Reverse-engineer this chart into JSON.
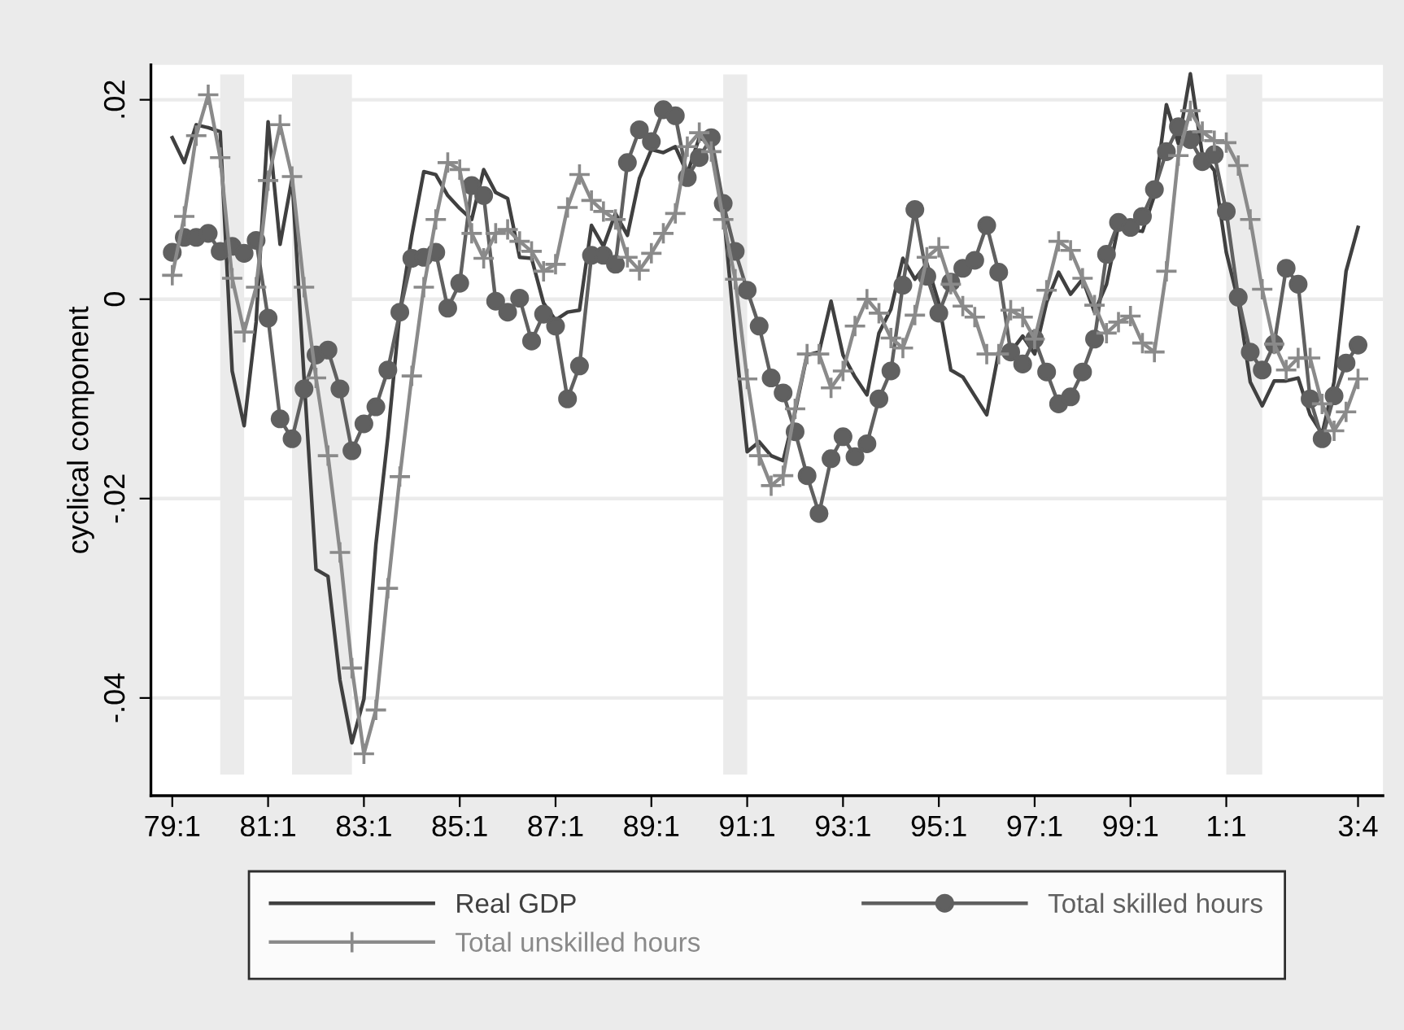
{
  "chart_data": {
    "type": "line",
    "ylabel": "cyclical component",
    "categories": [
      "79:1",
      null,
      null,
      null,
      null,
      null,
      null,
      null,
      "81:1",
      null,
      null,
      null,
      null,
      null,
      null,
      null,
      "83:1",
      null,
      null,
      null,
      null,
      null,
      null,
      null,
      "85:1",
      null,
      null,
      null,
      null,
      null,
      null,
      null,
      "87:1",
      null,
      null,
      null,
      null,
      null,
      null,
      null,
      "89:1",
      null,
      null,
      null,
      null,
      null,
      null,
      null,
      "91:1",
      null,
      null,
      null,
      null,
      null,
      null,
      null,
      "93:1",
      null,
      null,
      null,
      null,
      null,
      null,
      null,
      "95:1",
      null,
      null,
      null,
      null,
      null,
      null,
      null,
      "97:1",
      null,
      null,
      null,
      null,
      null,
      null,
      null,
      "99:1",
      null,
      null,
      null,
      null,
      null,
      null,
      null,
      "1:1",
      null,
      null,
      null,
      null,
      null,
      null,
      null,
      null,
      null,
      null,
      "3:4"
    ],
    "ylim": [
      -0.0498,
      0.0235
    ],
    "yticks": [
      {
        "value": -0.04,
        "label": "-.04"
      },
      {
        "value": -0.02,
        "label": "-.02"
      },
      {
        "value": 0,
        "label": "0"
      },
      {
        "value": 0.02,
        "label": ".02"
      }
    ],
    "grid": "y",
    "legend": "bottom",
    "series": [
      {
        "name": "Real GDP",
        "color": "#404040",
        "marker": "none",
        "values": [
          0.0162,
          0.0137,
          0.0175,
          0.0172,
          0.0168,
          -0.0072,
          -0.0127,
          -0.0023,
          0.0178,
          0.0055,
          0.0121,
          -0.0078,
          -0.0271,
          -0.0278,
          -0.0382,
          -0.0445,
          -0.0401,
          -0.0246,
          -0.0138,
          -0.0013,
          0.0064,
          0.0128,
          0.0125,
          0.0104,
          0.0091,
          0.008,
          0.013,
          0.0107,
          0.0101,
          0.0042,
          0.0041,
          -0.0004,
          -0.0021,
          -0.0013,
          -0.0011,
          0.0074,
          0.0053,
          0.0086,
          0.0064,
          0.0121,
          0.015,
          0.0147,
          0.0153,
          0.0126,
          0.0162,
          0.0156,
          0.0091,
          -0.004,
          -0.0153,
          -0.0143,
          -0.0157,
          -0.0162,
          -0.0113,
          -0.0056,
          -0.0053,
          -0.0002,
          -0.0056,
          -0.0078,
          -0.0096,
          -0.0034,
          -0.001,
          0.0041,
          0.002,
          0.0036,
          -0.0004,
          -0.0071,
          -0.0078,
          -0.0097,
          -0.0116,
          -0.0053,
          -0.0053,
          -0.0037,
          -0.0055,
          -0.0003,
          0.0027,
          0.0005,
          0.002,
          -0.0013,
          0.0015,
          0.0074,
          0.007,
          0.0068,
          0.0104,
          0.0195,
          0.0156,
          0.0226,
          0.0145,
          0.0129,
          0.0047,
          -0.0002,
          -0.0083,
          -0.0107,
          -0.0082,
          -0.0082,
          -0.0079,
          -0.0116,
          -0.0135,
          -0.0083,
          0.0028,
          0.0072
        ]
      },
      {
        "name": "Total skilled hours",
        "color": "#606060",
        "marker": "circle",
        "values": [
          0.0047,
          0.0062,
          0.0062,
          0.0066,
          0.0048,
          0.0053,
          0.0046,
          0.0059,
          -0.0019,
          -0.012,
          -0.014,
          -0.009,
          -0.0056,
          -0.0051,
          -0.009,
          -0.0152,
          -0.0125,
          -0.0108,
          -0.0071,
          -0.0013,
          0.0041,
          0.0042,
          0.0047,
          -0.0009,
          0.0016,
          0.0114,
          0.0104,
          -0.0002,
          -0.0013,
          0.0001,
          -0.0042,
          -0.0015,
          -0.0027,
          -0.01,
          -0.0067,
          0.0044,
          0.0044,
          0.0035,
          0.0137,
          0.017,
          0.0158,
          0.019,
          0.0184,
          0.0122,
          0.0142,
          0.0162,
          0.0096,
          0.0048,
          0.0009,
          -0.0027,
          -0.0079,
          -0.0094,
          -0.0133,
          -0.0177,
          -0.0215,
          -0.016,
          -0.0138,
          -0.0158,
          -0.0145,
          -0.01,
          -0.0072,
          0.0014,
          0.009,
          0.0023,
          -0.0014,
          0.0017,
          0.0031,
          0.0039,
          0.0074,
          0.0027,
          -0.0053,
          -0.0065,
          -0.004,
          -0.0073,
          -0.0105,
          -0.0098,
          -0.0073,
          -0.004,
          0.0045,
          0.0077,
          0.0072,
          0.0083,
          0.011,
          0.0148,
          0.0173,
          0.016,
          0.0138,
          0.0145,
          0.0088,
          0.0002,
          -0.0053,
          -0.0071,
          -0.0045,
          0.0031,
          0.0015,
          -0.01,
          -0.014,
          -0.0097,
          -0.0064,
          -0.0046
        ]
      },
      {
        "name": "Total unskilled hours",
        "color": "#8a8a8a",
        "marker": "cross",
        "values": [
          0.0024,
          0.0083,
          0.0164,
          0.0205,
          0.0142,
          0.0021,
          -0.0033,
          0.0012,
          0.0119,
          0.0175,
          0.0123,
          0.0012,
          -0.0079,
          -0.0157,
          -0.0254,
          -0.037,
          -0.0456,
          -0.0412,
          -0.029,
          -0.0178,
          -0.0077,
          0.0012,
          0.008,
          0.0137,
          0.013,
          0.0066,
          0.0041,
          0.0066,
          0.007,
          0.0058,
          0.0048,
          0.0028,
          0.0035,
          0.0092,
          0.0125,
          0.0099,
          0.0088,
          0.008,
          0.0042,
          0.0029,
          0.0046,
          0.0066,
          0.0086,
          0.0153,
          0.0167,
          0.0148,
          0.008,
          0.002,
          -0.008,
          -0.0157,
          -0.0187,
          -0.0177,
          -0.011,
          -0.0055,
          -0.0055,
          -0.0089,
          -0.0072,
          -0.0027,
          0.0,
          -0.0014,
          -0.0039,
          -0.0049,
          -0.0016,
          0.0042,
          0.0052,
          0.0015,
          -0.0007,
          -0.0018,
          -0.0055,
          -0.0055,
          -0.0011,
          -0.0018,
          -0.004,
          0.0009,
          0.0058,
          0.0049,
          0.0021,
          -0.0006,
          -0.0034,
          -0.0023,
          -0.0017,
          -0.0044,
          -0.0053,
          0.0028,
          0.0144,
          0.0189,
          0.0168,
          0.0159,
          0.0157,
          0.0134,
          0.008,
          0.001,
          -0.0045,
          -0.0071,
          -0.0059,
          -0.0059,
          -0.0105,
          -0.0132,
          -0.0113,
          -0.008
        ]
      }
    ]
  }
}
